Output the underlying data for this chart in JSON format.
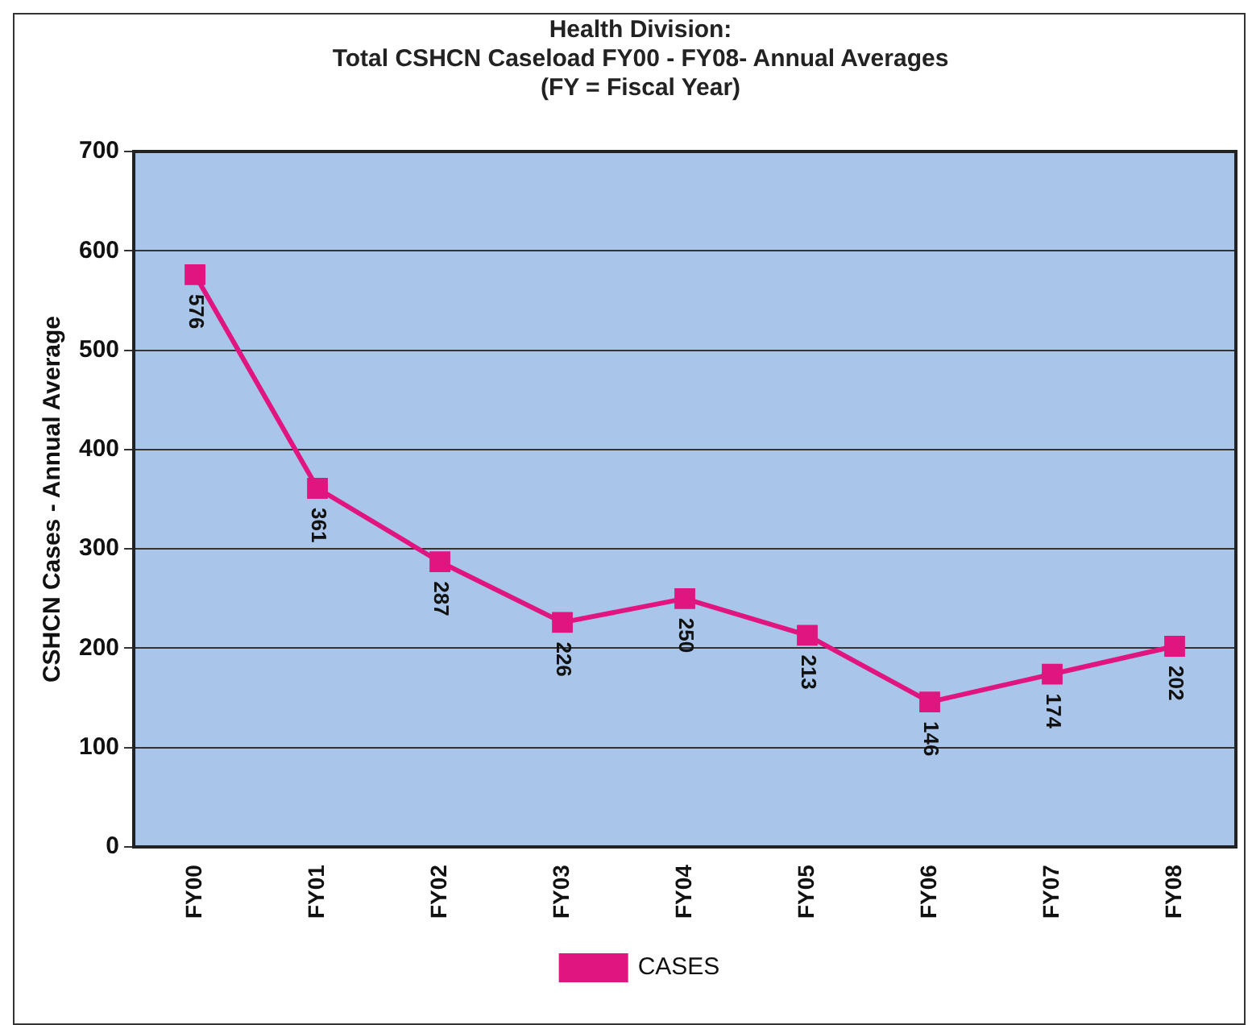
{
  "chart_data": {
    "type": "line",
    "title": "Health Division:\nTotal CSHCN Caseload FY00 - FY08- Annual Averages\n(FY = Fiscal Year)",
    "ylabel": "CSHCN Cases - Annual Average",
    "categories": [
      "FY00",
      "FY01",
      "FY02",
      "FY03",
      "FY04",
      "FY05",
      "FY06",
      "FY07",
      "FY08"
    ],
    "series": [
      {
        "name": "CASES",
        "color": "#e0157f",
        "values": [
          576,
          361,
          287,
          226,
          250,
          213,
          146,
          174,
          202
        ]
      }
    ],
    "ylim": [
      0,
      700
    ],
    "yticks": [
      0,
      100,
      200,
      300,
      400,
      500,
      600,
      700
    ],
    "grid": "y",
    "legend": "bottom",
    "marker": "square",
    "data_labels": true
  }
}
